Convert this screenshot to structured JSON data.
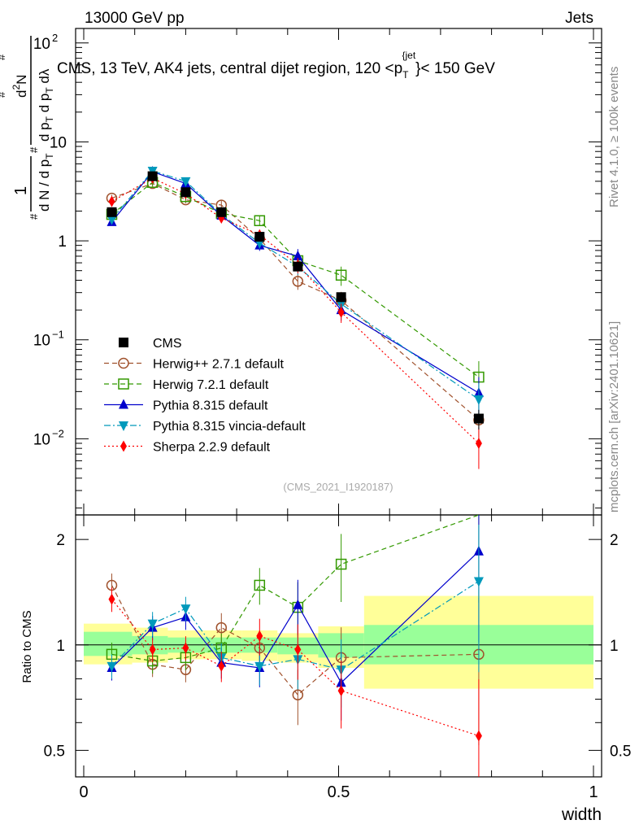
{
  "header": {
    "left": "13000 GeV pp",
    "right": "Jets"
  },
  "side": {
    "rivet": "Rivet 4.1.0, ≥ 100k events",
    "mcplots": "mcplots.cern.ch [arXiv:2401.10621]"
  },
  "chart_data": {
    "type": "line",
    "title": "CMS, 13 TeV, AK4 jets, central dijet region, 120 <p_T^{jet}< 150 GeV",
    "title_main": "CMS, 13 TeV, AK4 jets, central dijet region, 120 <",
    "title_p": "p",
    "title_sub": "T",
    "title_sup": "{jet",
    "title_tail": "}< 150 GeV",
    "watermark": "(CMS_2021_I1920187)",
    "xlabel": "width",
    "ylabel": "1/dN/dp_T d²N/dp_T dλ",
    "ylabel_ratio": "Ratio to CMS",
    "xlim": [
      0,
      1
    ],
    "ylim_main": [
      0.0017,
      140
    ],
    "ylim_ratio": [
      0.42,
      2.35
    ],
    "x_ticks": [
      "0",
      "0.5",
      "1"
    ],
    "y_ticks_main": [
      {
        "base": "10",
        "exp": "2",
        "value": 100
      },
      {
        "base": "10",
        "exp": "",
        "value": 10
      },
      {
        "base": "1",
        "exp": "",
        "value": 1
      },
      {
        "base": "10",
        "exp": "−1",
        "value": 0.1
      },
      {
        "base": "10",
        "exp": "−2",
        "value": 0.01
      }
    ],
    "y_ticks_ratio": [
      "0.5",
      "1",
      "2"
    ],
    "x": [
      0.055,
      0.135,
      0.2,
      0.27,
      0.345,
      0.42,
      0.505,
      0.775
    ],
    "series": [
      {
        "name": "CMS",
        "color": "#000000",
        "marker": "square-filled",
        "line": "none",
        "values": [
          1.95,
          4.5,
          3.1,
          1.95,
          1.1,
          0.55,
          0.27,
          0.016
        ]
      },
      {
        "name": "Herwig++ 2.7.1 default",
        "color": "#a0522d",
        "marker": "circle-open",
        "line": "dashed",
        "values": [
          2.7,
          3.8,
          2.6,
          2.3,
          1.05,
          0.39,
          0.25,
          0.0155
        ],
        "ratio": [
          1.48,
          0.88,
          0.85,
          1.12,
          0.98,
          0.72,
          0.92,
          0.94
        ]
      },
      {
        "name": "Herwig 7.2.1 default",
        "color": "#339900",
        "marker": "square-open",
        "line": "dashed",
        "values": [
          1.85,
          3.9,
          2.8,
          1.9,
          1.6,
          0.63,
          0.45,
          0.042
        ],
        "ratio": [
          0.94,
          0.9,
          0.92,
          0.98,
          1.48,
          1.28,
          1.7,
          2.4
        ]
      },
      {
        "name": "Pythia 8.315 default",
        "color": "#0000cc",
        "marker": "triangle-up",
        "line": "solid",
        "values": [
          1.55,
          5.0,
          3.8,
          1.8,
          0.9,
          0.7,
          0.2,
          0.029
        ],
        "ratio": [
          0.86,
          1.12,
          1.2,
          0.89,
          0.86,
          1.3,
          0.78,
          1.85
        ]
      },
      {
        "name": "Pythia 8.315 vincia-default",
        "color": "#0099bb",
        "marker": "triangle-down",
        "line": "dashdot",
        "values": [
          1.65,
          5.1,
          4.0,
          1.85,
          0.95,
          0.55,
          0.23,
          0.025
        ],
        "ratio": [
          0.87,
          1.15,
          1.27,
          0.92,
          0.87,
          0.91,
          0.85,
          1.52
        ]
      },
      {
        "name": "Sherpa 2.2.9 default",
        "color": "#ff0000",
        "marker": "diamond",
        "line": "dotted",
        "values": [
          2.5,
          4.3,
          3.0,
          1.7,
          1.15,
          0.57,
          0.19,
          0.009
        ],
        "ratio": [
          1.35,
          0.97,
          0.98,
          0.87,
          1.06,
          0.97,
          0.74,
          0.55
        ]
      }
    ],
    "ratio_bands": [
      {
        "x0": 0.0,
        "x1": 0.095,
        "inner": [
          0.93,
          1.09
        ],
        "outer": [
          0.88,
          1.15
        ]
      },
      {
        "x0": 0.095,
        "x1": 0.165,
        "inner": [
          0.94,
          1.06
        ],
        "outer": [
          0.89,
          1.12
        ]
      },
      {
        "x0": 0.165,
        "x1": 0.235,
        "inner": [
          0.95,
          1.05
        ],
        "outer": [
          0.91,
          1.1
        ]
      },
      {
        "x0": 0.235,
        "x1": 0.31,
        "inner": [
          0.95,
          1.05
        ],
        "outer": [
          0.91,
          1.1
        ]
      },
      {
        "x0": 0.31,
        "x1": 0.38,
        "inner": [
          0.95,
          1.05
        ],
        "outer": [
          0.9,
          1.1
        ]
      },
      {
        "x0": 0.38,
        "x1": 0.46,
        "inner": [
          0.94,
          1.05
        ],
        "outer": [
          0.89,
          1.08
        ]
      },
      {
        "x0": 0.46,
        "x1": 0.55,
        "inner": [
          0.92,
          1.08
        ],
        "outer": [
          0.86,
          1.13
        ]
      },
      {
        "x0": 0.55,
        "x1": 1.0,
        "inner": [
          0.88,
          1.14
        ],
        "outer": [
          0.75,
          1.38
        ]
      }
    ]
  }
}
